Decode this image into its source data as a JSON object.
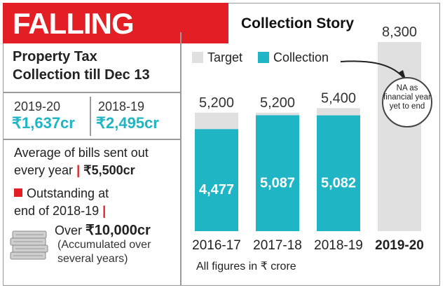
{
  "banner_title": "FALLING SHORT",
  "story_title": "Collection Story",
  "property_tax": {
    "title_line1": "Property Tax",
    "title_line2": "Collection till Dec 13",
    "years": [
      {
        "label": "2019-20",
        "value": "₹1,637cr"
      },
      {
        "label": "2018-19",
        "value": "₹2,495cr"
      }
    ]
  },
  "average_bills": {
    "text_line1": "Average of bills sent out",
    "text_line2_prefix": "every year",
    "separator": "|",
    "value": "₹5,500cr"
  },
  "outstanding": {
    "line1": "Outstanding at",
    "line2": "end of 2018-19",
    "separator": "|",
    "over_prefix": "Over",
    "over_value": "₹10,000cr",
    "note": "(Accumulated over several years)"
  },
  "na_note": "NA as financial year yet to end",
  "footnote": "All figures in ₹ crore",
  "colors": {
    "banner_red": "#e31e24",
    "target_gray": "#e0e0e0",
    "collection_teal": "#1fb5c4",
    "value_teal": "#20b5c4"
  },
  "icons": [
    "money-stack-icon",
    "arrow-icon"
  ],
  "chart_data": {
    "type": "bar",
    "title": "Collection Story",
    "categories": [
      "2016-17",
      "2017-18",
      "2018-19",
      "2019-20"
    ],
    "series": [
      {
        "name": "Target",
        "values": [
          5200,
          5200,
          5400,
          8300
        ],
        "labels": [
          "5,200",
          "5,200",
          "5,400",
          "8,300"
        ]
      },
      {
        "name": "Collection",
        "values": [
          4477,
          5087,
          5082,
          null
        ],
        "labels": [
          "4,477",
          "5,087",
          "5,082",
          ""
        ]
      }
    ],
    "ylim": [
      0,
      8300
    ],
    "grid": false,
    "legend": "top-left",
    "unit": "₹ crore"
  }
}
